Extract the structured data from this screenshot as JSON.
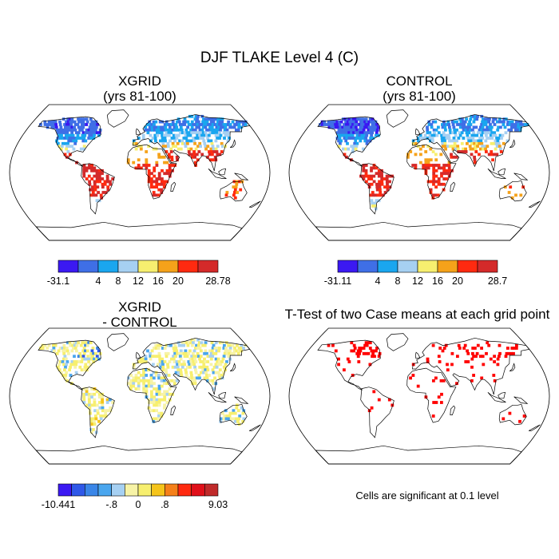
{
  "figure": {
    "title": "DJF TLAKE Level 4 (C)",
    "footnote": "Cells are significant at 0.1 level"
  },
  "panels": [
    {
      "id": "xgrid",
      "title_line1": "XGRID",
      "title_line2": "(yrs 81-100)"
    },
    {
      "id": "control",
      "title_line1": "CONTROL",
      "title_line2": "(yrs 81-100)"
    },
    {
      "id": "diff",
      "title_line1": "XGRID",
      "title_line2": "- CONTROL"
    },
    {
      "id": "ttest",
      "title_line1": "T-Test of two Case means at each grid point",
      "title_line2": ""
    }
  ],
  "chart_data": [
    {
      "type": "heatmap",
      "title": "XGRID (yrs 81-100)",
      "projection": "Robinson world map",
      "colorbar": {
        "colors": [
          "#3b19f2",
          "#3f6fe6",
          "#1aa6ef",
          "#a6d0f2",
          "#f7ef6f",
          "#f5a21a",
          "#ff2a10",
          "#d42a2a"
        ],
        "tick_labels": [
          "-31.1",
          "4",
          "8",
          "12",
          "16",
          "20",
          "28.78"
        ],
        "tick_edges": [
          0,
          2,
          3,
          4,
          5,
          6,
          8
        ]
      },
      "regions": [
        {
          "name": "Canada / North America",
          "color": "#3f6fe6"
        },
        {
          "name": "Siberia / Northern Eurasia",
          "color": "#1aa6ef"
        },
        {
          "name": "Amazon / South America",
          "color": "#d42a2a"
        },
        {
          "name": "Central Africa",
          "color": "#ff2a10"
        },
        {
          "name": "Sahel",
          "color": "#f5a21a"
        }
      ]
    },
    {
      "type": "heatmap",
      "title": "CONTROL (yrs 81-100)",
      "projection": "Robinson world map",
      "colorbar": {
        "colors": [
          "#3b19f2",
          "#3f6fe6",
          "#1aa6ef",
          "#a6d0f2",
          "#f7ef6f",
          "#f5a21a",
          "#ff2a10",
          "#d42a2a"
        ],
        "tick_labels": [
          "-31.11",
          "4",
          "8",
          "12",
          "16",
          "20",
          "28.7"
        ],
        "tick_edges": [
          0,
          2,
          3,
          4,
          5,
          6,
          8
        ]
      }
    },
    {
      "type": "heatmap",
      "title": "XGRID - CONTROL",
      "projection": "Robinson world map",
      "colorbar": {
        "colors": [
          "#3b19f2",
          "#2f58e8",
          "#3a86e8",
          "#4aa6ee",
          "#a6d0f2",
          "#f7f3a6",
          "#f7ef6f",
          "#f5c41a",
          "#f5801a",
          "#ff2a10",
          "#e0101a",
          "#c02a2a"
        ],
        "tick_labels": [
          "-10.441",
          "-.8",
          "0",
          ".8",
          "9.03"
        ],
        "tick_edges": [
          0,
          4,
          6,
          8,
          12
        ]
      }
    },
    {
      "type": "heatmap",
      "title": "T-Test of two Case means at each grid point",
      "projection": "Robinson world map",
      "significant_color": "#ff0000",
      "significance_level": 0.1
    }
  ]
}
